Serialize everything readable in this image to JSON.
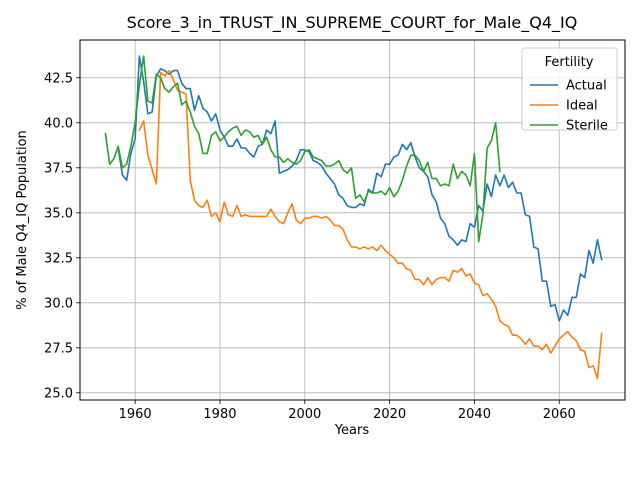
{
  "chart_data": {
    "type": "line",
    "title": "Score_3_in_TRUST_IN_SUPREME_COURT_for_Male_Q4_IQ",
    "xlabel": "Years",
    "ylabel": "% of Male Q4_IQ Population",
    "xlim": [
      1947,
      2075.5
    ],
    "ylim": [
      24.6,
      44.6
    ],
    "xticks": [
      1960,
      1980,
      2000,
      2020,
      2040,
      2060
    ],
    "yticks": [
      25.0,
      27.5,
      30.0,
      32.5,
      35.0,
      37.5,
      40.0,
      42.5
    ],
    "ytick_labels": [
      "25.0",
      "27.5",
      "30.0",
      "32.5",
      "35.0",
      "37.5",
      "40.0",
      "42.5"
    ],
    "grid": true,
    "legend": {
      "title": "Fertility",
      "position": "top-right"
    },
    "series": [
      {
        "name": "Actual",
        "color": "#1f77b4",
        "x": [
          1956,
          1957,
          1958,
          1959,
          1960,
          1961,
          1962,
          1963,
          1964,
          1965,
          1966,
          1967,
          1968,
          1969,
          1970,
          1971,
          1972,
          1973,
          1974,
          1975,
          1976,
          1977,
          1978,
          1979,
          1980,
          1981,
          1982,
          1983,
          1984,
          1985,
          1986,
          1987,
          1988,
          1989,
          1990,
          1991,
          1992,
          1993,
          1994,
          1995,
          1996,
          1997,
          1998,
          1999,
          2000,
          2001,
          2002,
          2003,
          2004,
          2005,
          2006,
          2007,
          2008,
          2009,
          2010,
          2011,
          2012,
          2013,
          2014,
          2015,
          2016,
          2017,
          2018,
          2019,
          2020,
          2021,
          2022,
          2023,
          2024,
          2025,
          2026,
          2027,
          2028,
          2029,
          2030,
          2031,
          2032,
          2033,
          2034,
          2035,
          2036,
          2037,
          2038,
          2039,
          2040,
          2041,
          2042,
          2043,
          2044,
          2045,
          2046,
          2047,
          2048,
          2049,
          2050,
          2051,
          2052,
          2053,
          2054,
          2055,
          2056,
          2057,
          2058,
          2059,
          2060,
          2061,
          2062,
          2063,
          2064,
          2065,
          2066,
          2067,
          2068,
          2069,
          2070
        ],
        "y": [
          38.6,
          37.1,
          36.8,
          38.3,
          39.1,
          43.7,
          42.3,
          40.5,
          40.6,
          42.6,
          43.0,
          42.9,
          42.7,
          42.9,
          42.9,
          42.2,
          41.9,
          41.9,
          40.7,
          41.5,
          40.8,
          40.6,
          40.1,
          40.5,
          39.6,
          39.2,
          38.7,
          38.7,
          39.1,
          38.6,
          38.6,
          38.3,
          38.1,
          38.7,
          38.8,
          39.6,
          39.4,
          40.1,
          37.2,
          37.3,
          37.4,
          37.6,
          37.9,
          38.5,
          38.5,
          38.4,
          37.9,
          37.8,
          37.6,
          37.2,
          36.9,
          36.6,
          36.0,
          35.8,
          35.4,
          35.3,
          35.3,
          35.5,
          35.4,
          36.3,
          36.1,
          37.2,
          37.0,
          37.7,
          37.7,
          38.1,
          38.2,
          38.8,
          38.5,
          38.9,
          38.1,
          37.5,
          37.3,
          37.0,
          36.0,
          35.6,
          34.7,
          34.4,
          33.7,
          33.5,
          33.2,
          33.5,
          33.4,
          34.4,
          34.2,
          35.4,
          35.1,
          36.6,
          35.9,
          37.1,
          36.5,
          37.1,
          36.4,
          36.7,
          36.1,
          36.1,
          34.9,
          34.8,
          33.1,
          33.0,
          31.2,
          31.2,
          29.8,
          29.9,
          29.0,
          29.6,
          29.3,
          30.3,
          30.3,
          31.6,
          31.4,
          32.9,
          32.2,
          33.5,
          32.4
        ]
      },
      {
        "name": "Ideal",
        "color": "#ff7f0e",
        "x": [
          1961,
          1962,
          1963,
          1964,
          1965,
          1966,
          1967,
          1968,
          1969,
          1970,
          1971,
          1972,
          1973,
          1974,
          1975,
          1976,
          1977,
          1978,
          1979,
          1980,
          1981,
          1982,
          1983,
          1984,
          1985,
          1986,
          1987,
          1988,
          1989,
          1990,
          1991,
          1992,
          1993,
          1994,
          1995,
          1996,
          1997,
          1998,
          1999,
          2000,
          2001,
          2002,
          2003,
          2004,
          2005,
          2006,
          2007,
          2008,
          2009,
          2010,
          2011,
          2012,
          2013,
          2014,
          2015,
          2016,
          2017,
          2018,
          2019,
          2020,
          2021,
          2022,
          2023,
          2024,
          2025,
          2026,
          2027,
          2028,
          2029,
          2030,
          2031,
          2032,
          2033,
          2034,
          2035,
          2036,
          2037,
          2038,
          2039,
          2040,
          2041,
          2042,
          2043,
          2044,
          2045,
          2046,
          2047,
          2048,
          2049,
          2050,
          2051,
          2052,
          2053,
          2054,
          2055,
          2056,
          2057,
          2058,
          2059,
          2060,
          2061,
          2062,
          2063,
          2064,
          2065,
          2066,
          2067,
          2068,
          2069,
          2070
        ],
        "y": [
          39.6,
          40.1,
          38.2,
          37.4,
          36.6,
          42.8,
          42.6,
          42.9,
          42.4,
          41.8,
          41.7,
          41.6,
          36.8,
          35.7,
          35.4,
          35.3,
          35.7,
          34.8,
          35.0,
          34.5,
          35.6,
          34.9,
          34.8,
          35.4,
          34.8,
          34.9,
          34.8,
          34.8,
          34.8,
          34.8,
          34.8,
          35.2,
          34.8,
          34.5,
          34.4,
          35.0,
          35.5,
          34.6,
          34.4,
          34.7,
          34.7,
          34.8,
          34.8,
          34.7,
          34.8,
          34.6,
          34.3,
          34.3,
          34.1,
          33.5,
          33.1,
          33.1,
          33.0,
          33.1,
          33.0,
          33.1,
          32.9,
          33.2,
          32.9,
          32.7,
          32.5,
          32.2,
          32.2,
          31.9,
          31.8,
          31.3,
          31.3,
          31.0,
          31.4,
          31.0,
          31.3,
          31.4,
          31.4,
          31.2,
          31.8,
          31.7,
          31.9,
          31.5,
          31.6,
          31.1,
          31.0,
          30.4,
          30.5,
          30.2,
          29.8,
          29.0,
          28.8,
          28.7,
          28.2,
          28.2,
          28.0,
          27.7,
          28.0,
          27.6,
          27.6,
          27.4,
          27.7,
          27.2,
          27.6,
          28.0,
          28.2,
          28.4,
          28.1,
          27.9,
          27.4,
          27.3,
          26.4,
          26.5,
          25.8,
          28.3
        ]
      },
      {
        "name": "Sterile",
        "color": "#2ca02c",
        "x": [
          1953,
          1954,
          1955,
          1956,
          1957,
          1958,
          1959,
          1960,
          1961,
          1962,
          1963,
          1964,
          1965,
          1966,
          1967,
          1968,
          1969,
          1970,
          1971,
          1972,
          1973,
          1974,
          1975,
          1976,
          1977,
          1978,
          1979,
          1980,
          1981,
          1982,
          1983,
          1984,
          1985,
          1986,
          1987,
          1988,
          1989,
          1990,
          1991,
          1992,
          1993,
          1994,
          1995,
          1996,
          1997,
          1998,
          1999,
          2000,
          2001,
          2002,
          2003,
          2004,
          2005,
          2006,
          2007,
          2008,
          2009,
          2010,
          2011,
          2012,
          2013,
          2014,
          2015,
          2016,
          2017,
          2018,
          2019,
          2020,
          2021,
          2022,
          2023,
          2024,
          2025,
          2026,
          2027,
          2028,
          2029,
          2030,
          2031,
          2032,
          2033,
          2034,
          2035,
          2036,
          2037,
          2038,
          2039,
          2040,
          2041,
          2042,
          2043,
          2044,
          2045,
          2046
        ],
        "y": [
          39.4,
          37.7,
          38.0,
          38.7,
          37.5,
          37.7,
          38.7,
          40.0,
          42.1,
          43.7,
          41.2,
          41.1,
          42.7,
          42.5,
          41.9,
          41.7,
          42.0,
          42.2,
          41.0,
          41.2,
          40.6,
          39.8,
          39.4,
          38.3,
          38.3,
          39.3,
          39.5,
          39.0,
          39.2,
          39.5,
          39.7,
          39.8,
          39.3,
          39.6,
          39.5,
          39.2,
          39.3,
          38.8,
          39.2,
          38.5,
          38.1,
          38.1,
          37.8,
          38.0,
          37.8,
          37.7,
          37.9,
          38.4,
          38.5,
          38.1,
          38.0,
          37.9,
          37.6,
          37.6,
          37.7,
          37.9,
          37.4,
          37.2,
          37.5,
          35.8,
          36.0,
          35.6,
          36.2,
          36.1,
          36.1,
          36.2,
          36.0,
          36.4,
          35.9,
          36.2,
          36.8,
          37.6,
          38.2,
          38.2,
          37.9,
          37.3,
          37.8,
          36.9,
          36.9,
          36.5,
          36.6,
          36.5,
          37.7,
          36.9,
          37.3,
          37.1,
          36.5,
          38.3,
          33.4,
          34.9,
          38.6,
          39.0,
          40.0,
          37.3
        ]
      }
    ]
  }
}
